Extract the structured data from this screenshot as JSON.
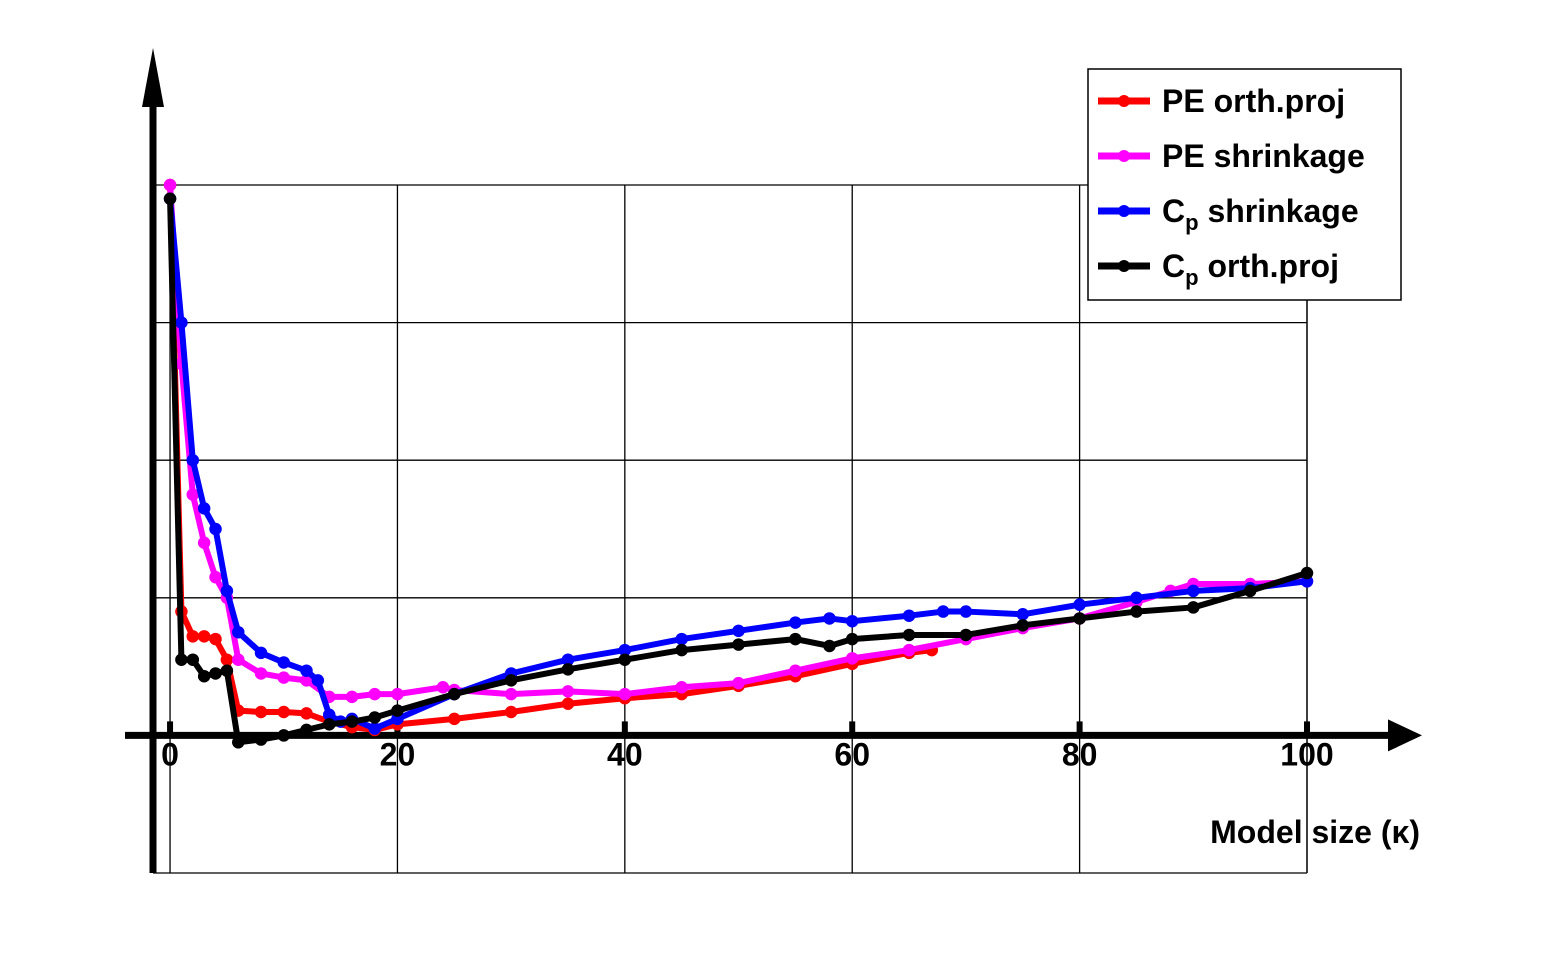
{
  "chart_data": {
    "type": "line",
    "title": "",
    "xlabel": "Model size (κ)",
    "ylabel": "",
    "xlim": [
      -1.5,
      100
    ],
    "ylim": [
      -1,
      4
    ],
    "x_ticks": [
      0,
      20,
      40,
      60,
      80,
      100
    ],
    "x_tick_labels": [
      "0",
      "20",
      "40",
      "60",
      "80",
      "100"
    ],
    "y_ticks": [
      -1,
      0,
      1,
      2,
      3,
      4
    ],
    "grid": true,
    "legend_position": "top-right",
    "colors": {
      "pe_orth": "#ff0000",
      "pe_shrink": "#ff00ff",
      "cp_shrink": "#0000ff",
      "cp_orth": "#000000"
    },
    "series": [
      {
        "key": "pe_orth",
        "name": "PE orth.proj",
        "legend_main": "PE orth.proj",
        "legend_sub": "",
        "legend_suffix": "",
        "color": "#ff0000",
        "points": [
          [
            0,
            4
          ],
          [
            1,
            0.9
          ],
          [
            2,
            0.72
          ],
          [
            3,
            0.72
          ],
          [
            4,
            0.7
          ],
          [
            5,
            0.55
          ],
          [
            6,
            0.18
          ],
          [
            8,
            0.17
          ],
          [
            10,
            0.17
          ],
          [
            12,
            0.16
          ],
          [
            14,
            0.1
          ],
          [
            16,
            0.06
          ],
          [
            18,
            0.04
          ],
          [
            20,
            0.08
          ],
          [
            25,
            0.12
          ],
          [
            30,
            0.17
          ],
          [
            35,
            0.23
          ],
          [
            40,
            0.27
          ],
          [
            45,
            0.3
          ],
          [
            50,
            0.36
          ],
          [
            55,
            0.43
          ],
          [
            60,
            0.52
          ],
          [
            65,
            0.6
          ],
          [
            67,
            0.62
          ]
        ]
      },
      {
        "key": "pe_shrink",
        "name": "PE shrinkage",
        "legend_main": "PE shrinkage",
        "legend_sub": "",
        "legend_suffix": "",
        "color": "#ff00ff",
        "points": [
          [
            0,
            4
          ],
          [
            1,
            2.7
          ],
          [
            2,
            1.75
          ],
          [
            3,
            1.4
          ],
          [
            4,
            1.15
          ],
          [
            5,
            1
          ],
          [
            6,
            0.55
          ],
          [
            8,
            0.45
          ],
          [
            10,
            0.42
          ],
          [
            12,
            0.4
          ],
          [
            14,
            0.28
          ],
          [
            16,
            0.28
          ],
          [
            18,
            0.3
          ],
          [
            20,
            0.3
          ],
          [
            24,
            0.35
          ],
          [
            25,
            0.33
          ],
          [
            30,
            0.3
          ],
          [
            35,
            0.32
          ],
          [
            40,
            0.3
          ],
          [
            45,
            0.35
          ],
          [
            50,
            0.38
          ],
          [
            55,
            0.47
          ],
          [
            60,
            0.56
          ],
          [
            65,
            0.62
          ],
          [
            70,
            0.7
          ],
          [
            75,
            0.78
          ],
          [
            80,
            0.85
          ],
          [
            85,
            0.97
          ],
          [
            88,
            1.05
          ],
          [
            90,
            1.1
          ],
          [
            95,
            1.1
          ],
          [
            100,
            1.12
          ]
        ]
      },
      {
        "key": "cp_shrink",
        "name": "Cp shrinkage",
        "legend_main": "C",
        "legend_sub": "p",
        "legend_suffix": " shrinkage",
        "color": "#0000ff",
        "points": [
          [
            0,
            3.9
          ],
          [
            1,
            3
          ],
          [
            2,
            2
          ],
          [
            3,
            1.65
          ],
          [
            4,
            1.5
          ],
          [
            5,
            1.05
          ],
          [
            6,
            0.75
          ],
          [
            8,
            0.6
          ],
          [
            10,
            0.53
          ],
          [
            12,
            0.47
          ],
          [
            13,
            0.4
          ],
          [
            14,
            0.15
          ],
          [
            15,
            0.1
          ],
          [
            16,
            0.12
          ],
          [
            18,
            0.05
          ],
          [
            20,
            0.12
          ],
          [
            25,
            0.3
          ],
          [
            30,
            0.45
          ],
          [
            35,
            0.55
          ],
          [
            40,
            0.62
          ],
          [
            45,
            0.7
          ],
          [
            50,
            0.76
          ],
          [
            55,
            0.82
          ],
          [
            58,
            0.85
          ],
          [
            60,
            0.83
          ],
          [
            65,
            0.87
          ],
          [
            68,
            0.9
          ],
          [
            70,
            0.9
          ],
          [
            75,
            0.88
          ],
          [
            80,
            0.95
          ],
          [
            85,
            1
          ],
          [
            90,
            1.05
          ],
          [
            95,
            1.07
          ],
          [
            100,
            1.12
          ]
        ]
      },
      {
        "key": "cp_orth",
        "name": "Cp orth.proj",
        "legend_main": "C",
        "legend_sub": "p",
        "legend_suffix": " orth.proj",
        "color": "#000000",
        "points": [
          [
            0,
            3.9
          ],
          [
            1,
            0.55
          ],
          [
            2,
            0.55
          ],
          [
            3,
            0.43
          ],
          [
            4,
            0.45
          ],
          [
            5,
            0.47
          ],
          [
            6,
            -0.05
          ],
          [
            8,
            -0.03
          ],
          [
            10,
            0
          ],
          [
            12,
            0.04
          ],
          [
            14,
            0.08
          ],
          [
            16,
            0.1
          ],
          [
            18,
            0.13
          ],
          [
            20,
            0.18
          ],
          [
            25,
            0.3
          ],
          [
            30,
            0.4
          ],
          [
            35,
            0.48
          ],
          [
            40,
            0.55
          ],
          [
            45,
            0.62
          ],
          [
            50,
            0.66
          ],
          [
            55,
            0.7
          ],
          [
            58,
            0.65
          ],
          [
            60,
            0.7
          ],
          [
            65,
            0.73
          ],
          [
            70,
            0.73
          ],
          [
            75,
            0.8
          ],
          [
            80,
            0.85
          ],
          [
            85,
            0.9
          ],
          [
            90,
            0.93
          ],
          [
            95,
            1.05
          ],
          [
            100,
            1.18
          ]
        ]
      }
    ]
  }
}
